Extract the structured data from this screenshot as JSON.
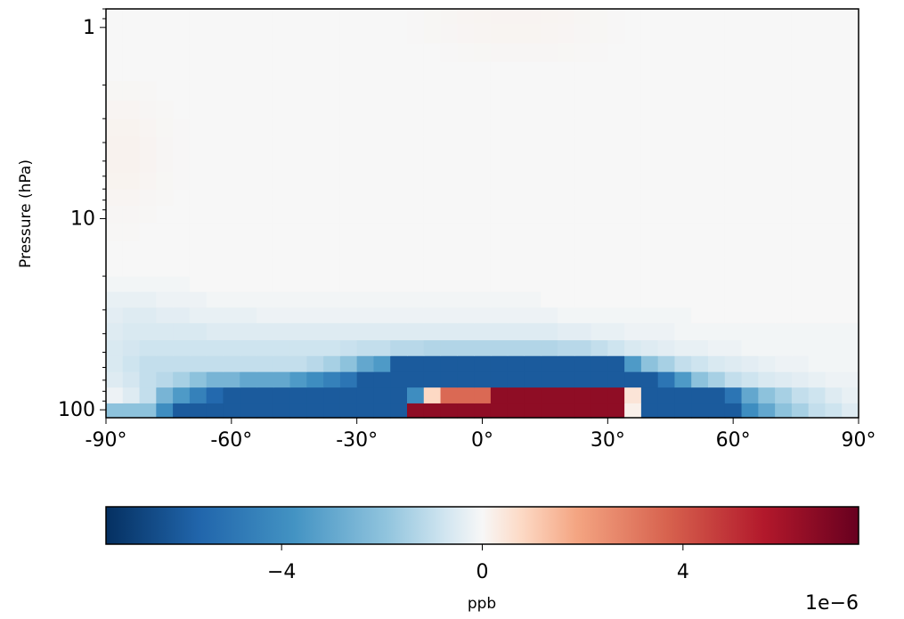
{
  "chart_data": {
    "type": "heatmap",
    "title": "",
    "xlabel": "",
    "ylabel": "Pressure (hPa)",
    "x_axis": {
      "range": [
        -90,
        90
      ],
      "ticks": [
        -90,
        -60,
        -30,
        0,
        30,
        60,
        90
      ],
      "tick_labels": [
        "-90°",
        "-60°",
        "-30°",
        "0°",
        "30°",
        "60°",
        "90°"
      ]
    },
    "y_axis": {
      "scale": "log",
      "inverted": true,
      "range": [
        0.8,
        110
      ],
      "ticks": [
        1,
        10,
        100
      ],
      "tick_labels": [
        "1",
        "10",
        "100"
      ]
    },
    "grid": false,
    "cell_width_deg": 4,
    "lat_edges": [
      -90,
      -86,
      -82,
      -78,
      -74,
      -70,
      -66,
      -62,
      -58,
      -54,
      -50,
      -46,
      -42,
      -38,
      -34,
      -30,
      -26,
      -22,
      -18,
      -14,
      -10,
      -6,
      -2,
      2,
      6,
      10,
      14,
      18,
      22,
      26,
      30,
      34,
      38,
      42,
      46,
      50,
      54,
      58,
      62,
      66,
      70,
      74,
      78,
      82,
      86,
      90
    ],
    "lat_centers": [
      -88,
      -84,
      -80,
      -76,
      -72,
      -68,
      -64,
      -60,
      -56,
      -52,
      -48,
      -44,
      -40,
      -36,
      -32,
      -28,
      -24,
      -20,
      -16,
      -12,
      -8,
      -4,
      0,
      4,
      8,
      12,
      16,
      20,
      24,
      28,
      32,
      36,
      40,
      44,
      48,
      52,
      56,
      60,
      64,
      68,
      72,
      76,
      80,
      84,
      88
    ],
    "level_edges": [
      110,
      92,
      76,
      63,
      52,
      43,
      35,
      29,
      24,
      20,
      16,
      13,
      10.5,
      8.5,
      7,
      5.7,
      4.6,
      3.7,
      3.0,
      2.4,
      1.9,
      1.5,
      1.2,
      0.95,
      0.8
    ],
    "levels": [
      100,
      84,
      69,
      57,
      47,
      39,
      32,
      26,
      22,
      18,
      14.5,
      11.7,
      9.5,
      7.7,
      6.3,
      5.1,
      4.1,
      3.3,
      2.7,
      2.1,
      1.7,
      1.35,
      1.07,
      0.87
    ],
    "values_ppb": [
      [
        -2e-06,
        -2e-06,
        -2e-06,
        -4e-06,
        -6e-06,
        -6e-06,
        -6e-06,
        -6e-06,
        -6e-06,
        -6e-06,
        -6e-06,
        -6e-06,
        -6e-06,
        -6e-06,
        -6e-06,
        -6e-06,
        -6e-06,
        -6e-06,
        6.5e-06,
        6.5e-06,
        6.5e-06,
        6.5e-06,
        6.5e-06,
        6.5e-06,
        6.5e-06,
        6.5e-06,
        6.5e-06,
        6.5e-06,
        6.5e-06,
        6.5e-06,
        6.5e-06,
        2e-07,
        -6e-06,
        -6e-06,
        -6e-06,
        -6e-06,
        -6e-06,
        -6e-06,
        -4e-06,
        -3e-06,
        -2e-06,
        -1.5e-06,
        -1e-06,
        -8e-07,
        -5e-07
      ],
      [
        -2e-07,
        -5e-07,
        -1e-06,
        -2.5e-06,
        -3.5e-06,
        -4.5e-06,
        -5.5e-06,
        -6e-06,
        -6e-06,
        -6e-06,
        -6e-06,
        -6e-06,
        -6e-06,
        -6e-06,
        -6e-06,
        -6e-06,
        -6e-06,
        -6e-06,
        -4e-06,
        8e-07,
        3.5e-06,
        3.5e-06,
        3.5e-06,
        6.5e-06,
        6.5e-06,
        6.5e-06,
        6.5e-06,
        6.5e-06,
        6.5e-06,
        6.5e-06,
        6.5e-06,
        5e-07,
        -6e-06,
        -6e-06,
        -6e-06,
        -6e-06,
        -6e-06,
        -5e-06,
        -3e-06,
        -2e-06,
        -1.5e-06,
        -1e-06,
        -8e-07,
        -5e-07,
        -3e-07
      ],
      [
        -5e-07,
        -7e-07,
        -1e-06,
        -1.2e-06,
        -1.5e-06,
        -2e-06,
        -2.5e-06,
        -2.5e-06,
        -3e-06,
        -3e-06,
        -3e-06,
        -3.5e-06,
        -4e-06,
        -4.5e-06,
        -5e-06,
        -6e-06,
        -6e-06,
        -6e-06,
        -6e-06,
        -6e-06,
        -6e-06,
        -6e-06,
        -6e-06,
        -6e-06,
        -6e-06,
        -6e-06,
        -6e-06,
        -6e-06,
        -6e-06,
        -6e-06,
        -6e-06,
        -6e-06,
        -6e-06,
        -5e-06,
        -3.5e-06,
        -2e-06,
        -1.5e-06,
        -1e-06,
        -8e-07,
        -6e-07,
        -5e-07,
        -4e-07,
        -3e-07,
        -2e-07,
        -2e-07
      ],
      [
        -6e-07,
        -8e-07,
        -1e-06,
        -1e-06,
        -1e-06,
        -1e-06,
        -1e-06,
        -1e-06,
        -1e-06,
        -1e-06,
        -1e-06,
        -1e-06,
        -1.2e-06,
        -1.5e-06,
        -2e-06,
        -3e-06,
        -3.5e-06,
        -6e-06,
        -6e-06,
        -6e-06,
        -6e-06,
        -6e-06,
        -6e-06,
        -6e-06,
        -6e-06,
        -6e-06,
        -6e-06,
        -6e-06,
        -6e-06,
        -6e-06,
        -6e-06,
        -3.5e-06,
        -2e-06,
        -1.5e-06,
        -1e-06,
        -8e-07,
        -6e-07,
        -5e-07,
        -4e-07,
        -3e-07,
        -2e-07,
        -2e-07,
        -1e-07,
        -1e-07,
        -1e-07
      ],
      [
        -6e-07,
        -7e-07,
        -8e-07,
        -8e-07,
        -8e-07,
        -8e-07,
        -8e-07,
        -8e-07,
        -8e-07,
        -8e-07,
        -8e-07,
        -8e-07,
        -8e-07,
        -8e-07,
        -9e-07,
        -1e-06,
        -1e-06,
        -1.2e-06,
        -1.2e-06,
        -1.3e-06,
        -1.3e-06,
        -1.3e-06,
        -1.3e-06,
        -1.3e-06,
        -1.3e-06,
        -1.3e-06,
        -1.3e-06,
        -1.2e-06,
        -1.2e-06,
        -1e-06,
        -8e-07,
        -6e-07,
        -5e-07,
        -4e-07,
        -3e-07,
        -3e-07,
        -2e-07,
        -2e-07,
        -1e-07,
        -1e-07,
        -1e-07,
        -1e-07,
        -1e-07,
        -1e-07,
        -1e-07
      ],
      [
        -5e-07,
        -6e-07,
        -6e-07,
        -6e-07,
        -6e-07,
        -6e-07,
        -5e-07,
        -5e-07,
        -5e-07,
        -5e-07,
        -5e-07,
        -5e-07,
        -5e-07,
        -5e-07,
        -5e-07,
        -5e-07,
        -5e-07,
        -5e-07,
        -5e-07,
        -5e-07,
        -5e-07,
        -5e-07,
        -5e-07,
        -5e-07,
        -5e-07,
        -5e-07,
        -5e-07,
        -4e-07,
        -4e-07,
        -3e-07,
        -3e-07,
        -2e-07,
        -2e-07,
        -2e-07,
        -1e-07,
        -1e-07,
        -1e-07,
        -1e-07,
        -1e-07,
        -1e-07,
        -1e-07,
        -1e-07,
        -1e-07,
        -1e-07,
        -1e-07
      ],
      [
        -4e-07,
        -5e-07,
        -5e-07,
        -4e-07,
        -4e-07,
        -3e-07,
        -3e-07,
        -3e-07,
        -3e-07,
        -2e-07,
        -2e-07,
        -2e-07,
        -2e-07,
        -2e-07,
        -2e-07,
        -2e-07,
        -2e-07,
        -2e-07,
        -2e-07,
        -2e-07,
        -2e-07,
        -2e-07,
        -2e-07,
        -2e-07,
        -2e-07,
        -2e-07,
        -2e-07,
        -1e-07,
        -1e-07,
        -1e-07,
        -1e-07,
        -1e-07,
        -1e-07,
        -1e-07,
        -1e-07,
        0,
        0,
        0,
        0,
        0,
        0,
        0,
        0,
        0,
        0
      ],
      [
        -3e-07,
        -3e-07,
        -3e-07,
        -2e-07,
        -2e-07,
        -2e-07,
        -1e-07,
        -1e-07,
        -1e-07,
        -1e-07,
        -1e-07,
        -1e-07,
        -1e-07,
        -1e-07,
        -1e-07,
        -1e-07,
        -1e-07,
        -1e-07,
        -1e-07,
        -1e-07,
        -1e-07,
        -1e-07,
        -1e-07,
        -1e-07,
        -1e-07,
        -1e-07,
        0,
        0,
        0,
        0,
        0,
        0,
        0,
        0,
        0,
        0,
        0,
        0,
        0,
        0,
        0,
        0,
        0,
        0,
        0
      ],
      [
        -1e-07,
        -1e-07,
        -1e-07,
        -1e-07,
        -1e-07,
        0,
        0,
        0,
        0,
        0,
        0,
        0,
        0,
        0,
        0,
        0,
        0,
        0,
        0,
        0,
        0,
        0,
        0,
        0,
        0,
        0,
        0,
        0,
        0,
        0,
        0,
        0,
        0,
        0,
        0,
        0,
        0,
        0,
        0,
        0,
        0,
        0,
        0,
        0,
        0
      ],
      [
        0,
        0,
        0,
        0,
        0,
        0,
        0,
        0,
        0,
        0,
        0,
        0,
        0,
        0,
        0,
        0,
        0,
        0,
        0,
        0,
        0,
        0,
        0,
        0,
        0,
        0,
        0,
        0,
        0,
        0,
        0,
        0,
        0,
        0,
        0,
        0,
        0,
        0,
        0,
        0,
        0,
        0,
        0,
        0,
        0
      ],
      [
        0,
        0,
        0,
        0,
        0,
        0,
        0,
        0,
        0,
        0,
        0,
        0,
        0,
        0,
        0,
        0,
        0,
        0,
        0,
        0,
        0,
        0,
        0,
        0,
        0,
        0,
        0,
        0,
        0,
        0,
        0,
        0,
        0,
        0,
        0,
        0,
        0,
        0,
        0,
        0,
        0,
        0,
        0,
        0,
        0
      ],
      [
        3e-08,
        3e-08,
        0,
        0,
        0,
        0,
        0,
        0,
        0,
        0,
        0,
        0,
        0,
        0,
        0,
        0,
        0,
        0,
        0,
        0,
        0,
        0,
        0,
        0,
        0,
        0,
        0,
        0,
        0,
        0,
        0,
        0,
        0,
        0,
        0,
        0,
        0,
        0,
        0,
        0,
        0,
        0,
        0,
        0,
        0
      ],
      [
        5e-08,
        5e-08,
        3e-08,
        0,
        0,
        0,
        0,
        0,
        0,
        0,
        0,
        0,
        0,
        0,
        0,
        0,
        0,
        0,
        0,
        0,
        0,
        0,
        0,
        0,
        0,
        0,
        0,
        0,
        0,
        0,
        0,
        0,
        0,
        0,
        0,
        0,
        0,
        0,
        0,
        0,
        0,
        0,
        0,
        0,
        0
      ],
      [
        8e-08,
        8e-08,
        5e-08,
        3e-08,
        0,
        0,
        0,
        0,
        0,
        0,
        0,
        0,
        0,
        0,
        0,
        0,
        0,
        0,
        0,
        0,
        0,
        0,
        0,
        0,
        0,
        0,
        0,
        0,
        0,
        0,
        0,
        0,
        0,
        0,
        0,
        0,
        0,
        0,
        0,
        0,
        0,
        0,
        0,
        0,
        0
      ],
      [
        1.2e-07,
        1.2e-07,
        8e-08,
        4e-08,
        2e-08,
        0,
        0,
        0,
        0,
        0,
        0,
        0,
        0,
        0,
        0,
        0,
        0,
        0,
        0,
        0,
        0,
        0,
        0,
        0,
        0,
        0,
        0,
        0,
        0,
        0,
        0,
        0,
        0,
        0,
        0,
        0,
        0,
        0,
        0,
        0,
        0,
        0,
        0,
        0,
        0
      ],
      [
        1.4e-07,
        1.4e-07,
        1e-07,
        5e-08,
        2e-08,
        0,
        0,
        0,
        0,
        0,
        0,
        0,
        0,
        0,
        0,
        0,
        0,
        0,
        0,
        0,
        0,
        0,
        0,
        0,
        0,
        0,
        0,
        0,
        0,
        0,
        0,
        0,
        0,
        0,
        0,
        0,
        0,
        0,
        0,
        0,
        0,
        0,
        0,
        0,
        0
      ],
      [
        1.4e-07,
        1.4e-07,
        1e-07,
        5e-08,
        2e-08,
        0,
        0,
        0,
        0,
        0,
        0,
        0,
        0,
        0,
        0,
        0,
        0,
        0,
        0,
        0,
        0,
        0,
        0,
        0,
        0,
        0,
        0,
        0,
        0,
        0,
        0,
        0,
        0,
        0,
        0,
        0,
        0,
        0,
        0,
        0,
        0,
        0,
        0,
        0,
        0
      ],
      [
        1.2e-07,
        1.2e-07,
        8e-08,
        4e-08,
        2e-08,
        0,
        0,
        0,
        0,
        0,
        0,
        0,
        0,
        0,
        0,
        0,
        0,
        0,
        0,
        0,
        0,
        0,
        0,
        0,
        0,
        0,
        0,
        0,
        0,
        0,
        0,
        0,
        0,
        0,
        0,
        0,
        0,
        0,
        0,
        0,
        0,
        0,
        0,
        0,
        0
      ],
      [
        8e-08,
        8e-08,
        5e-08,
        3e-08,
        0,
        0,
        0,
        0,
        0,
        0,
        0,
        0,
        0,
        0,
        0,
        0,
        0,
        0,
        0,
        0,
        0,
        0,
        0,
        0,
        0,
        0,
        0,
        0,
        0,
        0,
        0,
        0,
        0,
        0,
        0,
        0,
        0,
        0,
        0,
        0,
        0,
        0,
        0,
        0,
        0
      ],
      [
        4e-08,
        4e-08,
        3e-08,
        0,
        0,
        0,
        0,
        0,
        0,
        0,
        0,
        0,
        0,
        0,
        0,
        0,
        0,
        0,
        0,
        0,
        0,
        0,
        0,
        0,
        0,
        0,
        0,
        0,
        0,
        0,
        0,
        0,
        0,
        0,
        0,
        0,
        0,
        0,
        0,
        0,
        0,
        0,
        0,
        0,
        0
      ],
      [
        0,
        0,
        0,
        0,
        0,
        0,
        0,
        0,
        0,
        0,
        0,
        0,
        0,
        0,
        0,
        0,
        0,
        0,
        0,
        0,
        0,
        0,
        0,
        0,
        0,
        0,
        0,
        0,
        0,
        0,
        0,
        0,
        0,
        0,
        0,
        0,
        0,
        0,
        0,
        0,
        0,
        0,
        0,
        0,
        0
      ],
      [
        0,
        0,
        0,
        0,
        0,
        0,
        0,
        0,
        0,
        0,
        0,
        0,
        0,
        0,
        0,
        0,
        0,
        0,
        0,
        0,
        2e-08,
        3e-08,
        4e-08,
        5e-08,
        5e-08,
        5e-08,
        5e-08,
        4e-08,
        3e-08,
        2e-08,
        0,
        0,
        0,
        0,
        0,
        0,
        0,
        0,
        0,
        0,
        0,
        0,
        0,
        0,
        0
      ],
      [
        0,
        0,
        0,
        0,
        0,
        0,
        0,
        0,
        0,
        0,
        0,
        0,
        0,
        0,
        0,
        0,
        0,
        0,
        2e-08,
        4e-08,
        5e-08,
        7e-08,
        8e-08,
        9e-08,
        9e-08,
        9e-08,
        8e-08,
        7e-08,
        5e-08,
        4e-08,
        2e-08,
        0,
        0,
        0,
        0,
        0,
        0,
        0,
        0,
        0,
        0,
        0,
        0,
        0,
        0
      ],
      [
        0,
        0,
        0,
        0,
        0,
        0,
        0,
        0,
        0,
        0,
        0,
        0,
        0,
        0,
        0,
        0,
        0,
        0,
        2e-08,
        4e-08,
        6e-08,
        8e-08,
        9e-08,
        1e-07,
        1e-07,
        1e-07,
        9e-08,
        8e-08,
        6e-08,
        4e-08,
        2e-08,
        0,
        0,
        0,
        0,
        0,
        0,
        0,
        0,
        0,
        0,
        0,
        0,
        0,
        0
      ]
    ],
    "colorbar": {
      "colormap": "RdBu_r",
      "vmin": -7.5e-06,
      "vmax": 7.5e-06,
      "ticks": [
        -4e-06,
        0,
        4e-06
      ],
      "tick_labels": [
        "−4",
        "0",
        "4"
      ],
      "label": "ppb",
      "offset_text": "1e−6"
    }
  }
}
